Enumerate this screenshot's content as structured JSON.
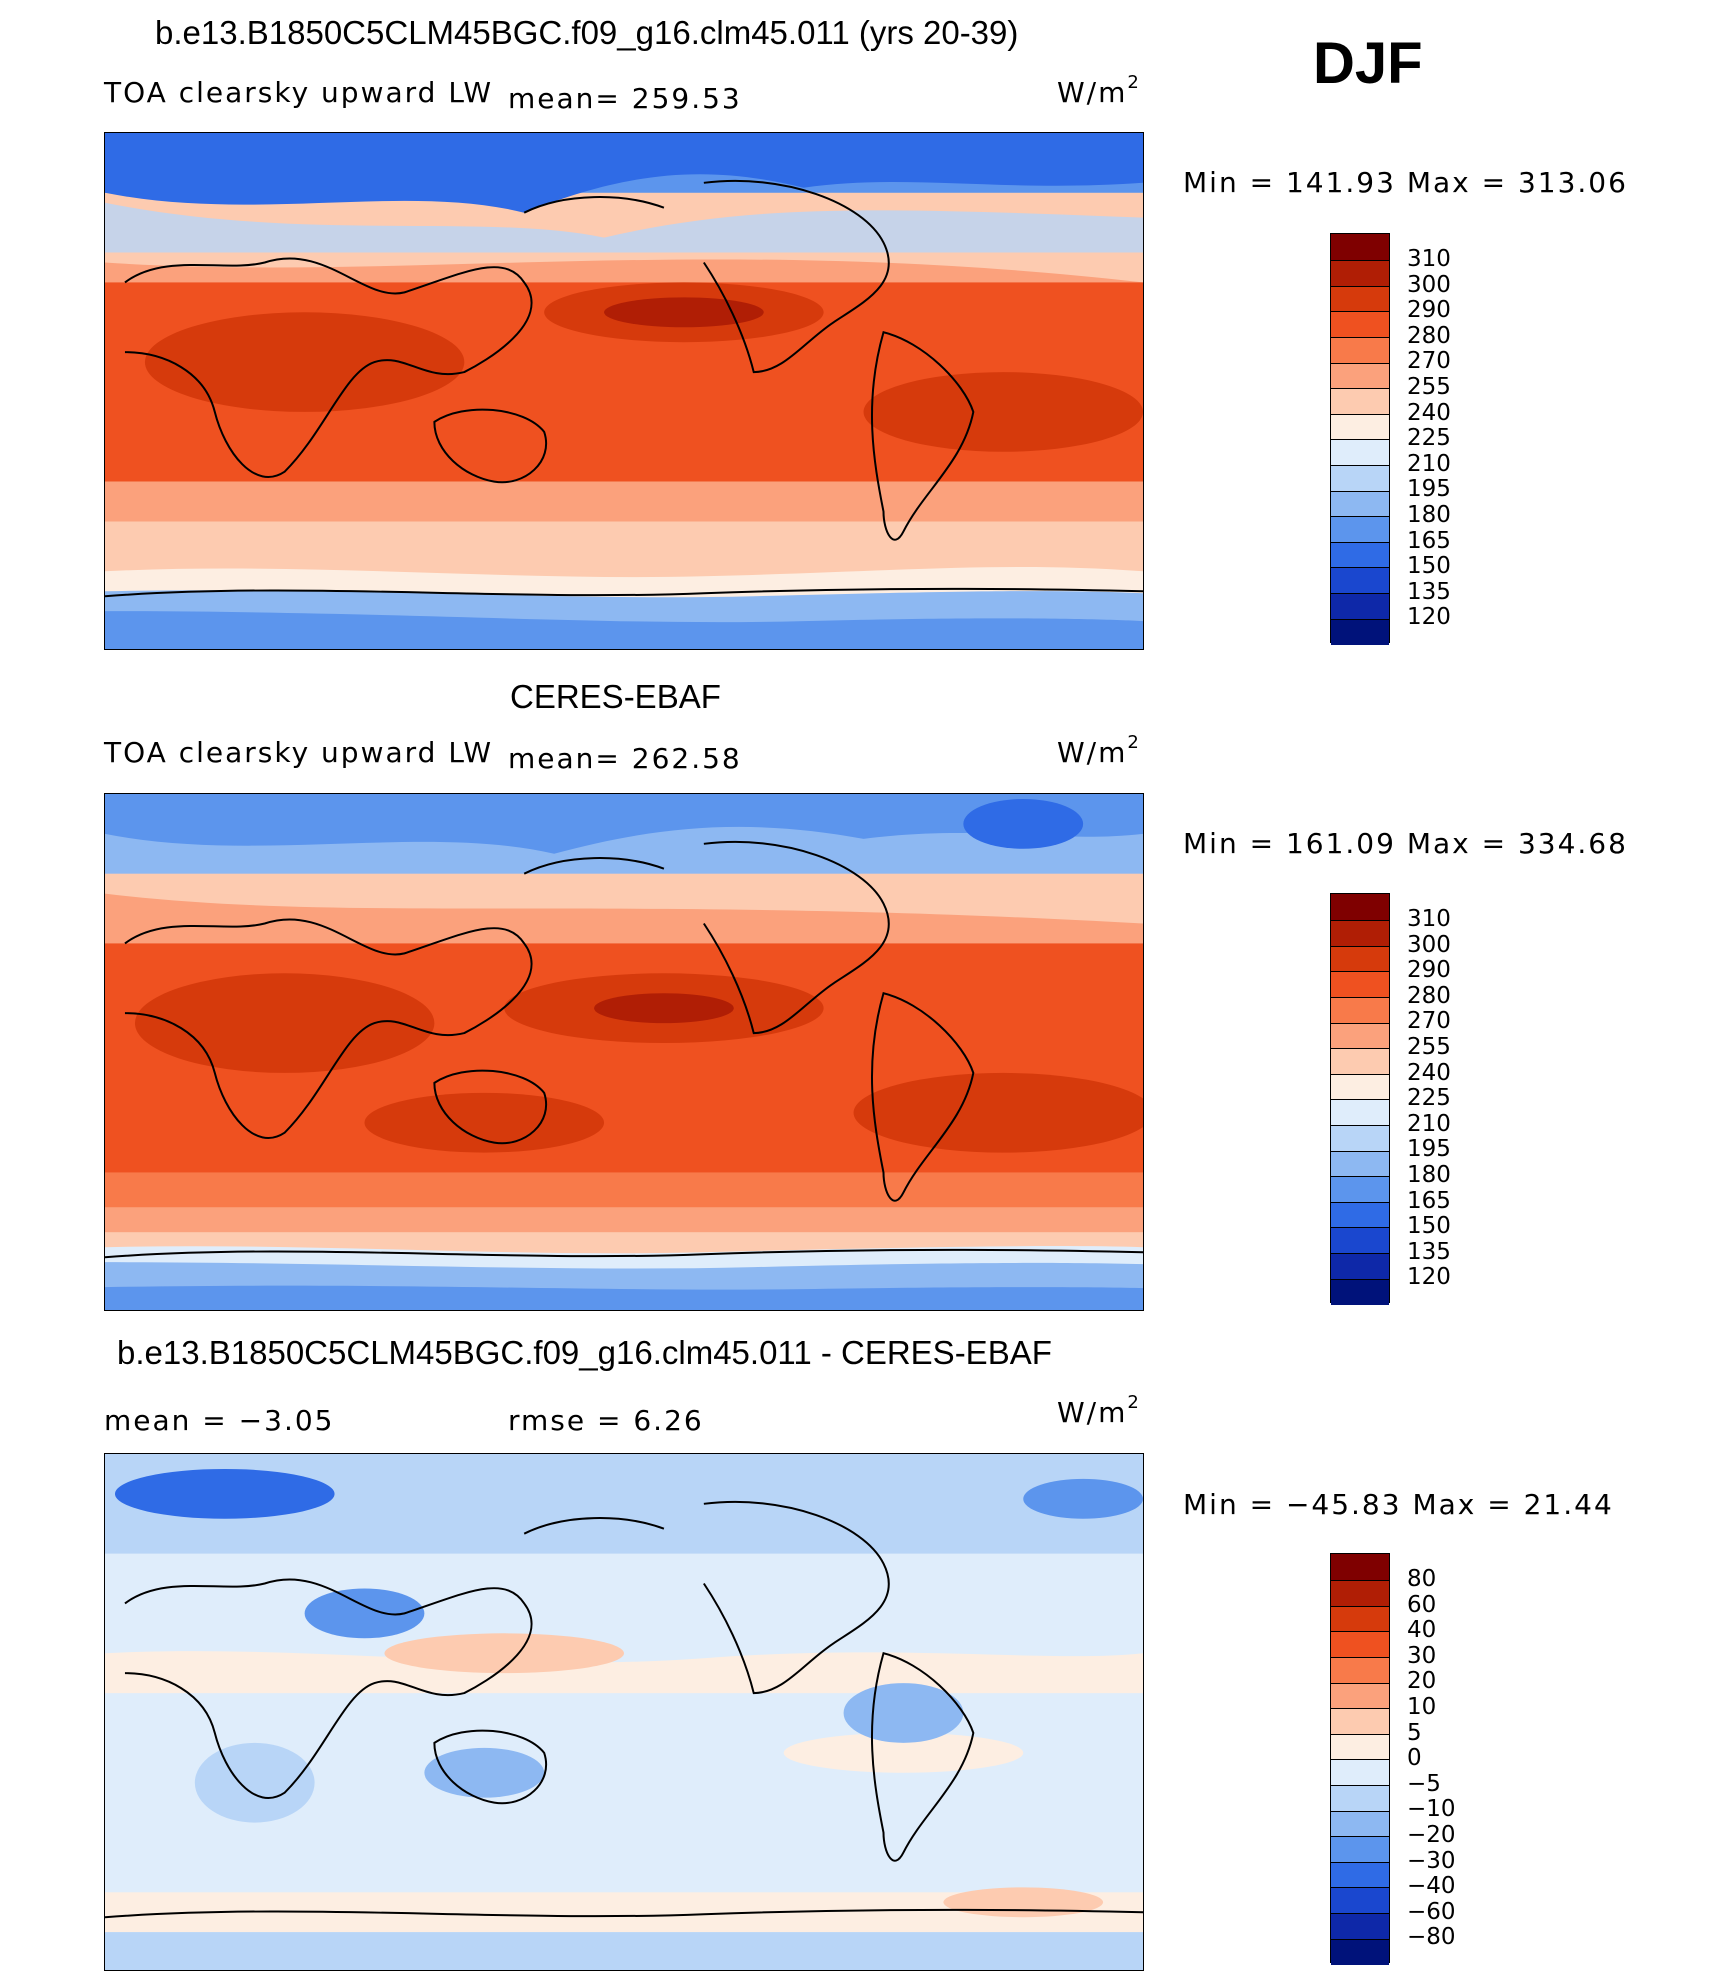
{
  "season": "DJF",
  "panels": [
    {
      "id": "model",
      "title": "b.e13.B1850C5CLM45BGC.f09_g16.clm45.011 (yrs 20-39)",
      "left_label": "TOA clearsky upward LW",
      "mean_label": "mean= 259.53",
      "units": "W/m",
      "units_sup": "2",
      "minmax": "Min = 141.93 Max = 313.06",
      "colorbar": [
        "310",
        "300",
        "290",
        "280",
        "270",
        "255",
        "240",
        "225",
        "210",
        "195",
        "180",
        "165",
        "150",
        "135",
        "120"
      ]
    },
    {
      "id": "obs",
      "title": "CERES-EBAF",
      "left_label": "TOA clearsky upward LW",
      "mean_label": "mean= 262.58",
      "units": "W/m",
      "units_sup": "2",
      "minmax": "Min = 161.09 Max = 334.68",
      "colorbar": [
        "310",
        "300",
        "290",
        "280",
        "270",
        "255",
        "240",
        "225",
        "210",
        "195",
        "180",
        "165",
        "150",
        "135",
        "120"
      ]
    },
    {
      "id": "diff",
      "title": "b.e13.B1850C5CLM45BGC.f09_g16.clm45.011 - CERES-EBAF",
      "left_label": "mean = −3.05",
      "mean_label": "rmse = 6.26",
      "units": "W/m",
      "units_sup": "2",
      "minmax": "Min = −45.83 Max = 21.44",
      "colorbar": [
        "80",
        "60",
        "40",
        "30",
        "20",
        "10",
        "5",
        "0",
        "−5",
        "−10",
        "−20",
        "−30",
        "−40",
        "−60",
        "−80"
      ]
    }
  ],
  "colors": {
    "scale": [
      "#7f0000",
      "#b01e05",
      "#d63a0c",
      "#ef5120",
      "#f87a4a",
      "#fba17c",
      "#fdcbb0",
      "#fdeee2",
      "#dfedfb",
      "#b8d5f7",
      "#8db8f2",
      "#5c95ed",
      "#2f6be6",
      "#1a47cf",
      "#0e28a8",
      "#00127a"
    ]
  }
}
